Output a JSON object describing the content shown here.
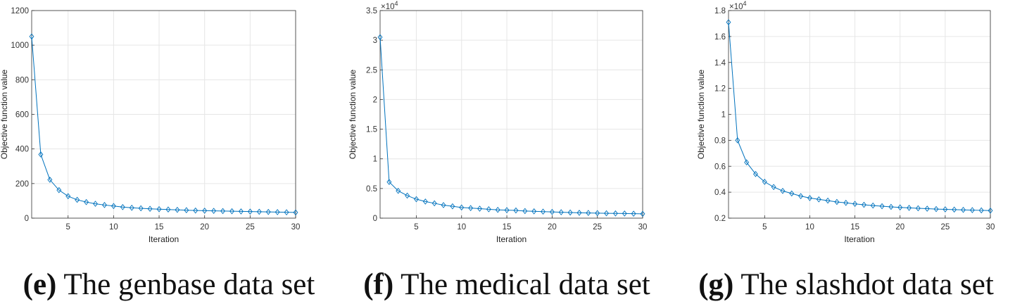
{
  "chart_data": [
    {
      "type": "line",
      "title": "",
      "xlabel": "Iteration",
      "ylabel": "Objective function value",
      "xlim": [
        1,
        30
      ],
      "ylim": [
        0,
        1200
      ],
      "grid": true,
      "xticks": [
        5,
        10,
        15,
        20,
        25,
        30
      ],
      "yticks": [
        0,
        200,
        400,
        600,
        800,
        1000,
        1200
      ],
      "ytick_labels": [
        "0",
        "200",
        "400",
        "600",
        "800",
        "1000",
        "1200"
      ],
      "exponent_label": "",
      "marker": "diamond",
      "color": "#0072BD",
      "x": [
        1,
        2,
        3,
        4,
        5,
        6,
        7,
        8,
        9,
        10,
        11,
        12,
        13,
        14,
        15,
        16,
        17,
        18,
        19,
        20,
        21,
        22,
        23,
        24,
        25,
        26,
        27,
        28,
        29,
        30
      ],
      "series": [
        {
          "name": "genbase",
          "values": [
            1050,
            368,
            222,
            162,
            127,
            106,
            93,
            83,
            76,
            70,
            64,
            60,
            57,
            54,
            52,
            50,
            48,
            46,
            44,
            43,
            42,
            41,
            40,
            39,
            38,
            37,
            36,
            35,
            34,
            33
          ]
        }
      ],
      "caption_label": "(e)",
      "caption_text": "The genbase data set"
    },
    {
      "type": "line",
      "title": "",
      "xlabel": "Iteration",
      "ylabel": "Objective function value",
      "xlim": [
        1,
        30
      ],
      "ylim": [
        0,
        3.5
      ],
      "grid": true,
      "xticks": [
        5,
        10,
        15,
        20,
        25,
        30
      ],
      "yticks": [
        0,
        0.5,
        1,
        1.5,
        2,
        2.5,
        3,
        3.5
      ],
      "ytick_labels": [
        "0",
        "0.5",
        "1",
        "1.5",
        "2",
        "2.5",
        "3",
        "3.5"
      ],
      "exponent_label": "×10^4",
      "marker": "diamond",
      "color": "#0072BD",
      "x": [
        1,
        2,
        3,
        4,
        5,
        6,
        7,
        8,
        9,
        10,
        11,
        12,
        13,
        14,
        15,
        16,
        17,
        18,
        19,
        20,
        21,
        22,
        23,
        24,
        25,
        26,
        27,
        28,
        29,
        30
      ],
      "series": [
        {
          "name": "medical",
          "values": [
            3.05,
            0.61,
            0.46,
            0.38,
            0.32,
            0.28,
            0.25,
            0.22,
            0.2,
            0.18,
            0.17,
            0.16,
            0.15,
            0.14,
            0.135,
            0.13,
            0.12,
            0.115,
            0.11,
            0.105,
            0.1,
            0.095,
            0.09,
            0.088,
            0.085,
            0.082,
            0.08,
            0.078,
            0.075,
            0.072
          ]
        }
      ],
      "caption_label": "(f)",
      "caption_text": "The medical data set"
    },
    {
      "type": "line",
      "title": "",
      "xlabel": "Iteration",
      "ylabel": "Objective function value",
      "xlim": [
        1,
        30
      ],
      "ylim": [
        0.2,
        1.8
      ],
      "grid": true,
      "xticks": [
        5,
        10,
        15,
        20,
        25,
        30
      ],
      "yticks": [
        0.2,
        0.4,
        0.6,
        0.8,
        1,
        1.2,
        1.4,
        1.6,
        1.8
      ],
      "ytick_labels": [
        "0.2",
        "0.4",
        "0.6",
        "0.8",
        "1",
        "1.2",
        "1.4",
        "1.6",
        "1.8"
      ],
      "exponent_label": "×10^4",
      "marker": "diamond",
      "color": "#0072BD",
      "x": [
        1,
        2,
        3,
        4,
        5,
        6,
        7,
        8,
        9,
        10,
        11,
        12,
        13,
        14,
        15,
        16,
        17,
        18,
        19,
        20,
        21,
        22,
        23,
        24,
        25,
        26,
        27,
        28,
        29,
        30
      ],
      "series": [
        {
          "name": "slashdot",
          "values": [
            1.71,
            0.8,
            0.63,
            0.54,
            0.48,
            0.44,
            0.41,
            0.39,
            0.37,
            0.355,
            0.345,
            0.335,
            0.325,
            0.318,
            0.31,
            0.303,
            0.297,
            0.292,
            0.287,
            0.283,
            0.279,
            0.276,
            0.273,
            0.27,
            0.268,
            0.266,
            0.264,
            0.262,
            0.26,
            0.258
          ]
        }
      ],
      "caption_label": "(g)",
      "caption_text": "The slashdot data set"
    }
  ]
}
